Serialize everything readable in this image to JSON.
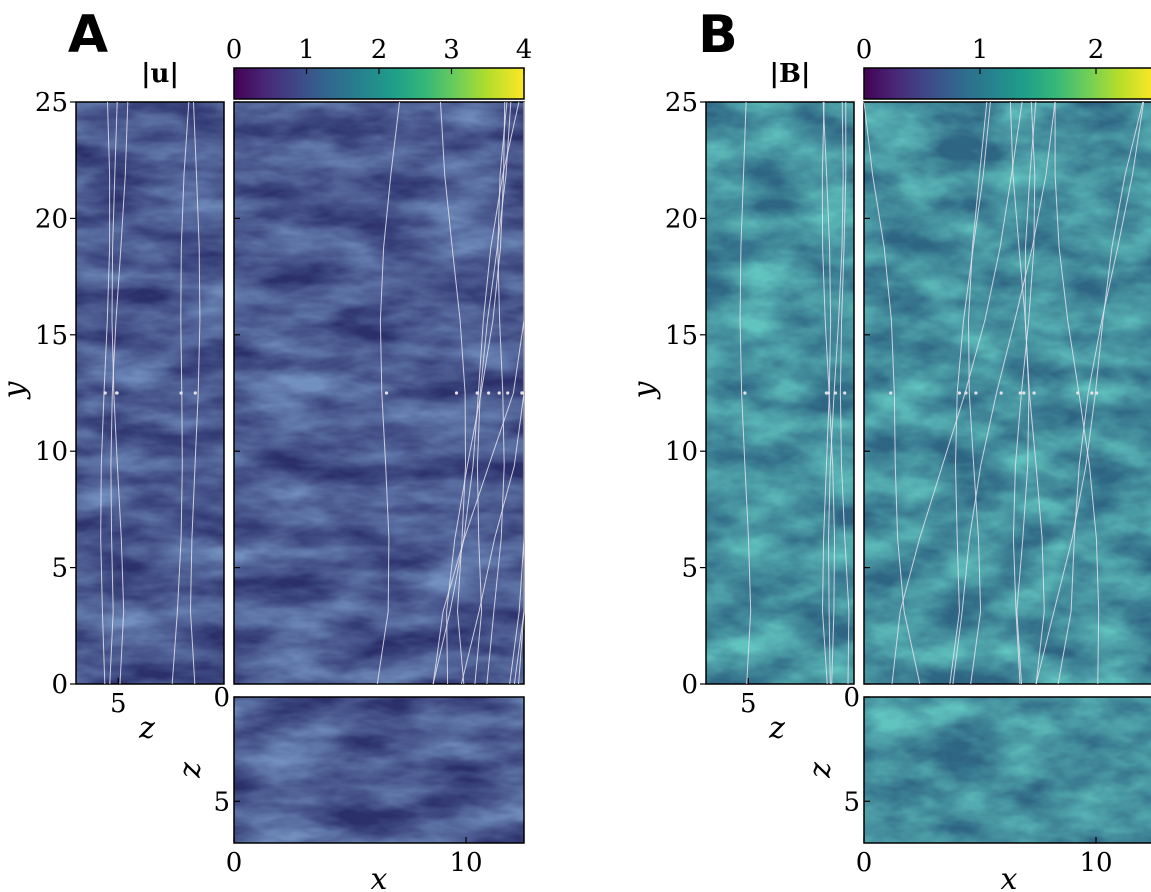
{
  "chart_data": [
    {
      "type": "heatmap",
      "panel_label": "A",
      "colorbar": {
        "label": "|u|",
        "range": [
          0,
          4
        ],
        "ticks": [
          "0",
          "1",
          "2",
          "3",
          "4"
        ],
        "colormap": "viridis"
      },
      "views": [
        {
          "name": "z-y slice",
          "xlabel": "z",
          "ylabel": "y",
          "xticks": [
            "5"
          ],
          "yticks": [
            "0",
            "5",
            "10",
            "15",
            "20",
            "25"
          ],
          "xlim": [
            7,
            0
          ],
          "ylim": [
            0,
            25
          ]
        },
        {
          "name": "x-y slice",
          "xlim": [
            0,
            12.5
          ],
          "ylim": [
            0,
            25
          ]
        },
        {
          "name": "x-z slice",
          "xlabel": "x",
          "ylabel": "z",
          "xticks": [
            "0",
            "10"
          ],
          "yticks": [
            "0",
            "5"
          ],
          "xlim": [
            0,
            12.5
          ],
          "ylim": [
            7,
            0
          ]
        }
      ],
      "overlay": "white streamlines"
    },
    {
      "type": "heatmap",
      "panel_label": "B",
      "colorbar": {
        "label": "|B|",
        "range": [
          0,
          2.5
        ],
        "ticks": [
          "0",
          "1",
          "2"
        ],
        "colormap": "viridis"
      },
      "views": [
        {
          "name": "z-y slice",
          "xlabel": "z",
          "ylabel": "y",
          "xticks": [
            "5"
          ],
          "yticks": [
            "0",
            "5",
            "10",
            "15",
            "20",
            "25"
          ],
          "xlim": [
            7,
            0
          ],
          "ylim": [
            0,
            25
          ]
        },
        {
          "name": "x-y slice",
          "xlim": [
            0,
            12.5
          ],
          "ylim": [
            0,
            25
          ]
        },
        {
          "name": "x-z slice",
          "xlabel": "x",
          "ylabel": "z",
          "xticks": [
            "0",
            "10"
          ],
          "yticks": [
            "0",
            "5"
          ],
          "xlim": [
            0,
            12.5
          ],
          "ylim": [
            7,
            0
          ]
        }
      ],
      "overlay": "white streamlines"
    }
  ],
  "colors": {
    "viridis": [
      "#440154",
      "#482878",
      "#3e4a89",
      "#31688e",
      "#26828e",
      "#1f9e89",
      "#35b779",
      "#6ece58",
      "#b5de2b",
      "#fde725"
    ],
    "background_dark": "#2b2f6a",
    "background_mid": "#2e6583",
    "streamline": "#e6e2ec"
  }
}
